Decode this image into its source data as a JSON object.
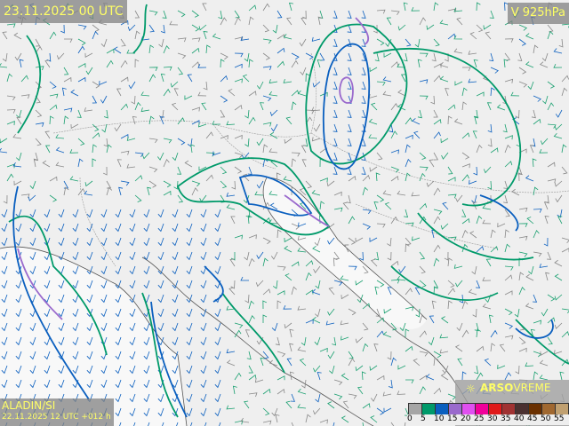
{
  "header": {
    "valid_time": "23.11.2025 00 UTC",
    "field": "V 925hPa"
  },
  "footer": {
    "model": "ALADIN/SI",
    "run": "22.11.2025 12 UTC +012 h",
    "logo_text_bold": "ARSO",
    "logo_text": "VREME"
  },
  "legend": {
    "ticks": [
      "0",
      "5",
      "10",
      "15",
      "20",
      "25",
      "30",
      "35",
      "40",
      "45",
      "50",
      "55"
    ],
    "colors": [
      "#a6a6a6",
      "#009a6a",
      "#0a5fbf",
      "#9a6acd",
      "#e050f0",
      "#f0009a",
      "#e01a1a",
      "#a03232",
      "#4a3030",
      "#6a3000",
      "#a06830",
      "#c0a070"
    ]
  },
  "colors": {
    "contour_5": "#009a6a",
    "contour_10": "#0a5fbf",
    "contour_15": "#9a6acd",
    "contour_20": "#e050f0",
    "coast": "#555555",
    "border": "#888888",
    "barb": "#0a5fbf"
  }
}
